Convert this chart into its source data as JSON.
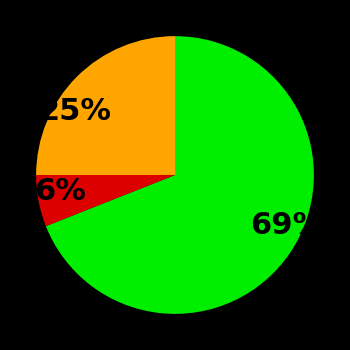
{
  "slices": [
    69,
    6,
    25
  ],
  "labels": [
    "69%",
    "6%",
    "25%"
  ],
  "colors": [
    "#00ee00",
    "#dd0000",
    "#ffa500"
  ],
  "background_color": "#000000",
  "startangle": 90,
  "label_fontsize": 22,
  "label_fontweight": "bold",
  "labeldistance": 0.65
}
